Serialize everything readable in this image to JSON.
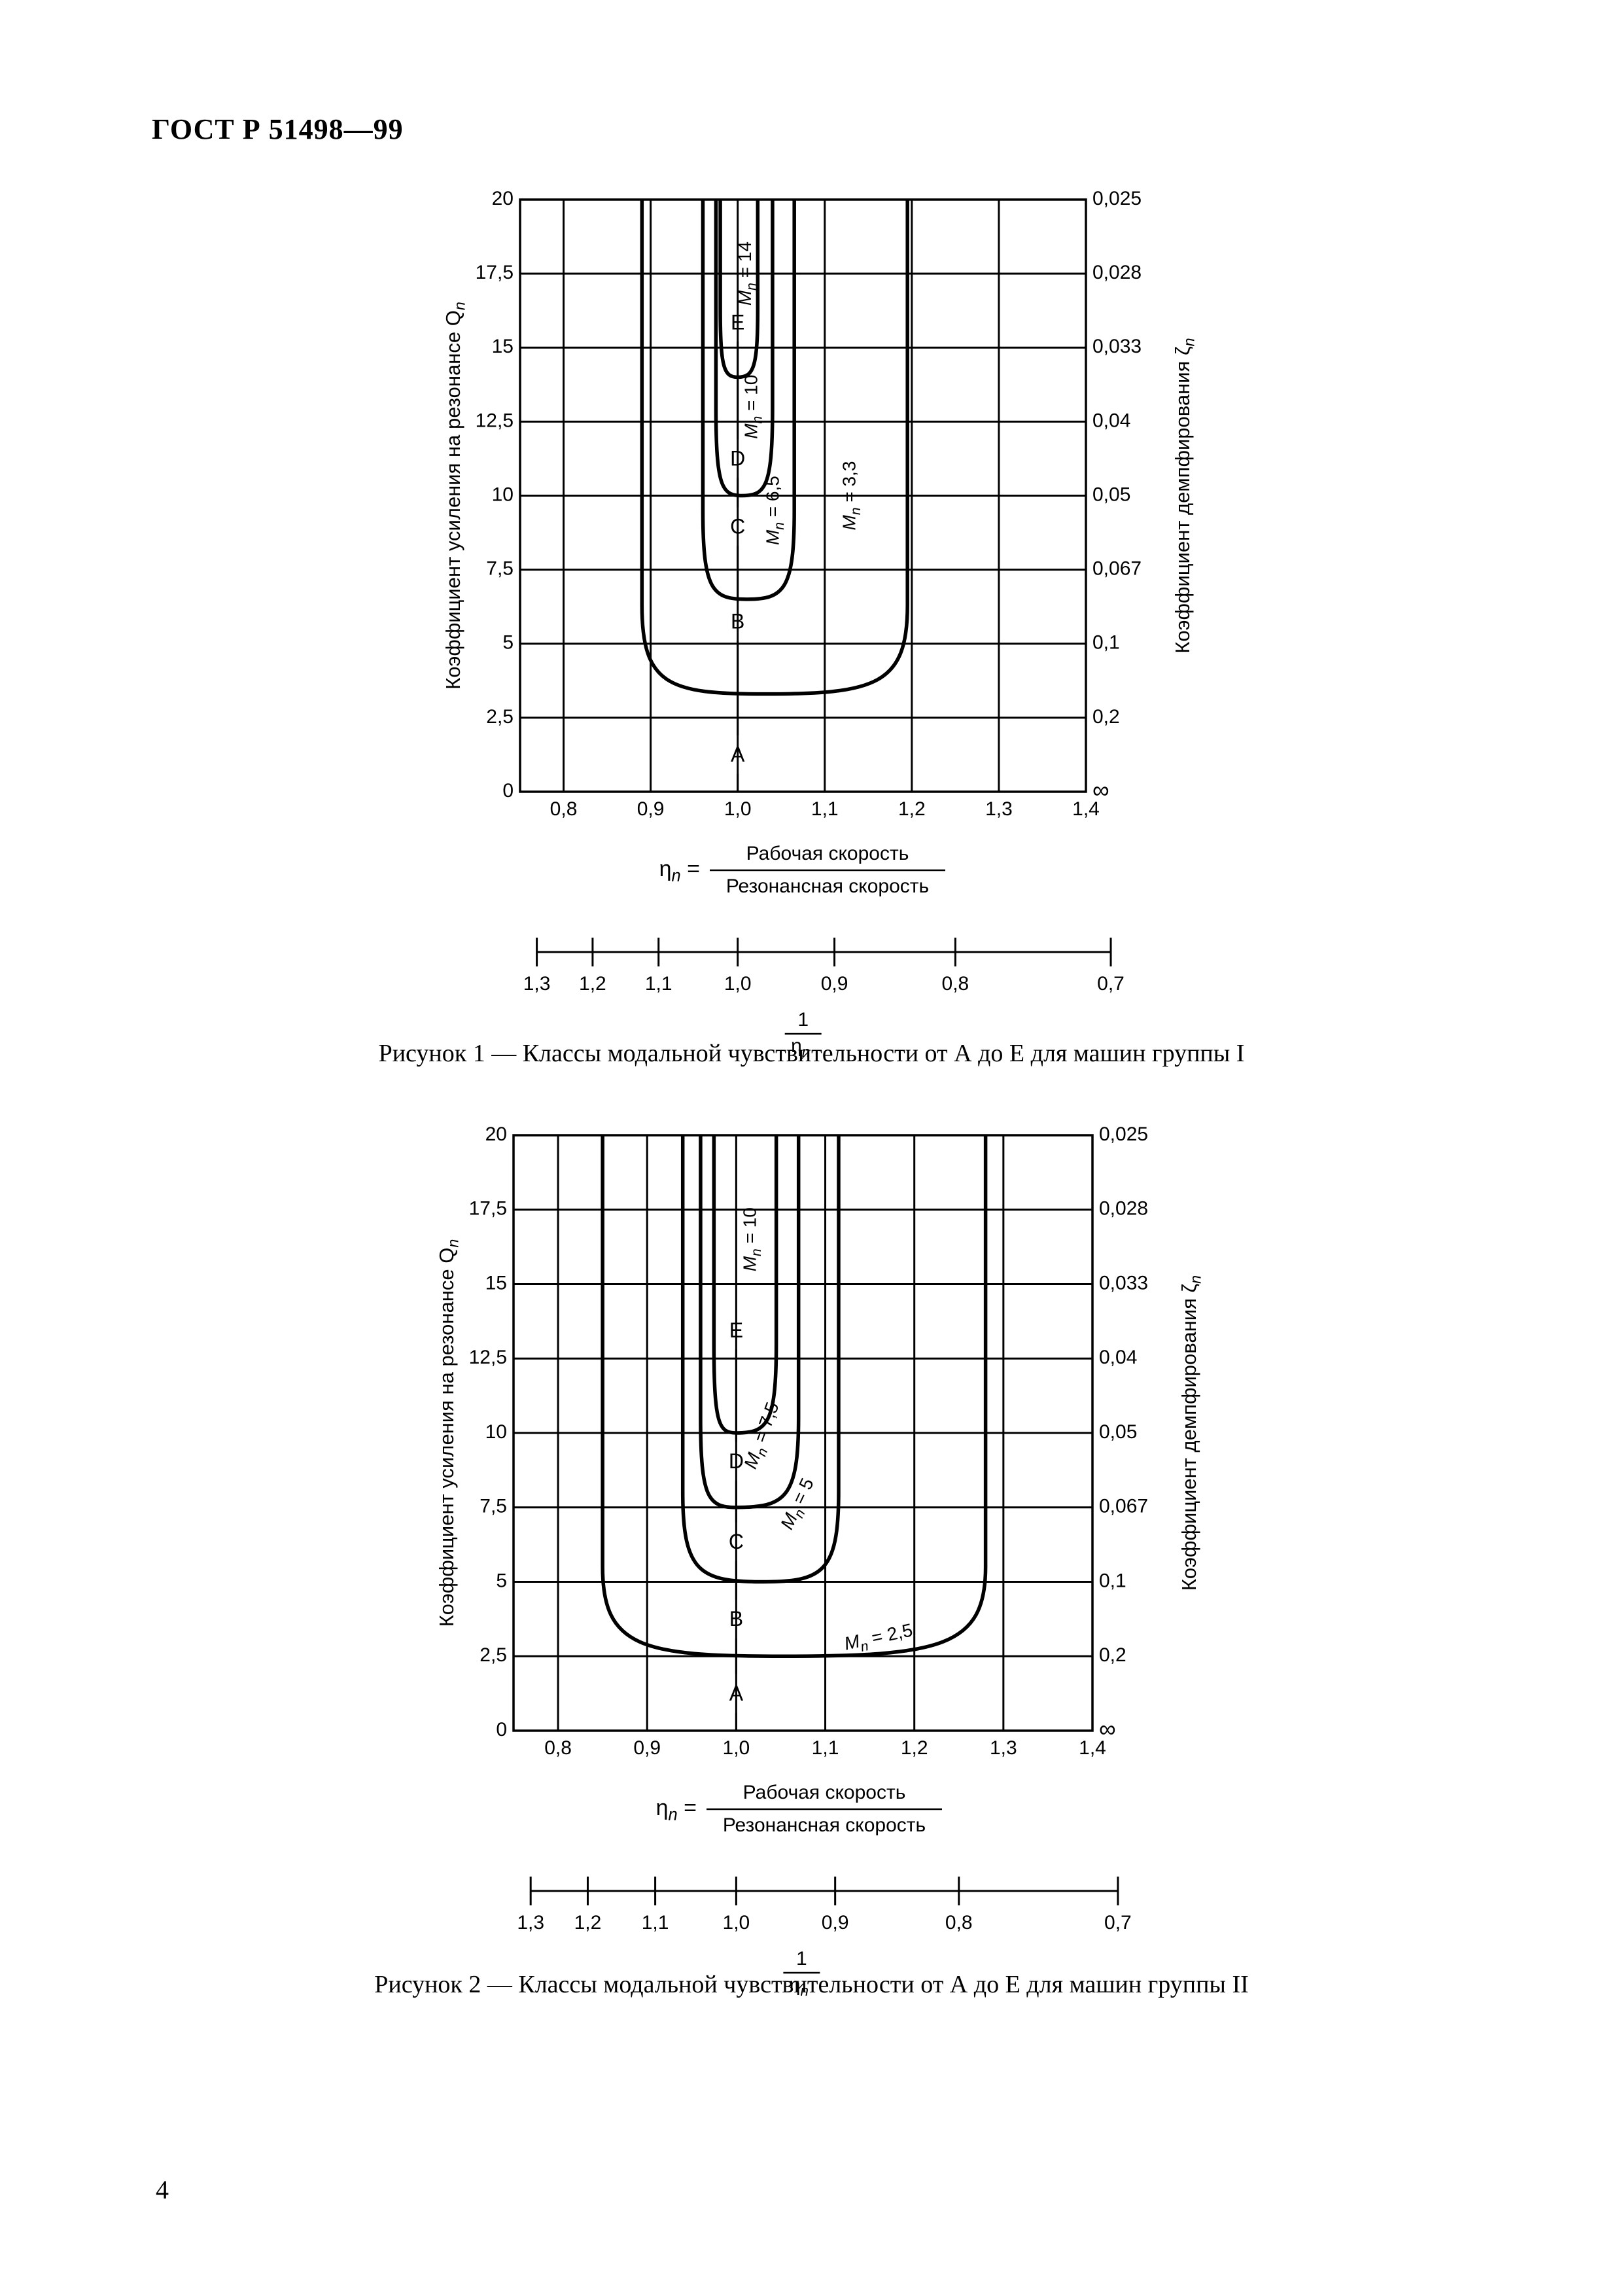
{
  "header": "ГОСТ Р 51498—99",
  "page_number": "4",
  "figures": [
    {
      "caption": "Рисунок 1 — Классы модальной чувствительности от А до Е для машин группы I",
      "chart_data": {
        "type": "line",
        "ylabel": "Коэффициент усиления на резонансе Q",
        "ylabel_sub": "n",
        "y2label": "Коэффициент демпфирования ζ",
        "y2label_sub": "n",
        "xlim": [
          0.75,
          1.4
        ],
        "ylim": [
          0,
          20
        ],
        "x_ticks": [
          "0,8",
          "0,9",
          "1,0",
          "1,1",
          "1,2",
          "1,3",
          "1,4"
        ],
        "y_ticks": [
          "0",
          "2,5",
          "5",
          "7,5",
          "10",
          "12,5",
          "15",
          "17,5",
          "20"
        ],
        "y2_ticks": [
          "∞",
          "0,2",
          "0,1",
          "0,067",
          "0,05",
          "0,04",
          "0,033",
          "0,028",
          "0,025"
        ],
        "x_formula": {
          "lhs": "η",
          "lhs_sub": "n",
          "eq": "=",
          "numerator": "Рабочая скорость",
          "denominator": "Резонансная скорость"
        },
        "x2_ticks": [
          "1,3",
          "1,2",
          "1,1",
          "1,0",
          "0,9",
          "0,8",
          "0,7"
        ],
        "x2_label": {
          "numerator": "1",
          "denominator": "η",
          "denominator_sub": "n"
        },
        "grid": true,
        "class_letters": [
          {
            "label": "A",
            "y": 1.2
          },
          {
            "label": "B",
            "y": 5.7
          },
          {
            "label": "C",
            "y": 8.9
          },
          {
            "label": "D",
            "y": 11.2
          },
          {
            "label": "E",
            "y": 15.8
          }
        ],
        "series": [
          {
            "name": "M = 3,3",
            "name_sub": "n",
            "min_y": 3.3,
            "x_left": 0.89,
            "x_right": 1.195,
            "x_min": 1.03,
            "label_x": 1.13,
            "label_y": 10.0,
            "label_rot": -90
          },
          {
            "name": "M = 6,5",
            "name_sub": "n",
            "min_y": 6.5,
            "x_left": 0.96,
            "x_right": 1.065,
            "x_min": 1.01,
            "label_x": 1.042,
            "label_y": 9.5,
            "label_rot": -90
          },
          {
            "name": "M = 10",
            "name_sub": "n",
            "min_y": 10.0,
            "x_left": 0.975,
            "x_right": 1.04,
            "x_min": 1.005,
            "label_x": 1.017,
            "label_y": 13.0,
            "label_rot": -90
          },
          {
            "name": "M = 14",
            "name_sub": "n",
            "min_y": 14.0,
            "x_left": 0.98,
            "x_right": 1.023,
            "x_min": 1.0,
            "label_x": 1.01,
            "label_y": 17.5,
            "label_rot": -90
          }
        ]
      }
    },
    {
      "caption": "Рисунок 2 — Классы модальной чувствительности от А до Е для машин группы II",
      "chart_data": {
        "type": "line",
        "ylabel": "Коэффициент усиления на резонансе Q",
        "ylabel_sub": "n",
        "y2label": "Коэффициент демпфирования ζ",
        "y2label_sub": "n",
        "xlim": [
          0.75,
          1.4
        ],
        "ylim": [
          0,
          20
        ],
        "x_ticks": [
          "0,8",
          "0,9",
          "1,0",
          "1,1",
          "1,2",
          "1,3",
          "1,4"
        ],
        "y_ticks": [
          "0",
          "2,5",
          "5",
          "7,5",
          "10",
          "12,5",
          "15",
          "17,5",
          "20"
        ],
        "y2_ticks": [
          "∞",
          "0,2",
          "0,1",
          "0,067",
          "0,05",
          "0,04",
          "0,033",
          "0,028",
          "0,025"
        ],
        "x_formula": {
          "lhs": "η",
          "lhs_sub": "n",
          "eq": "=",
          "numerator": "Рабочая скорость",
          "denominator": "Резонансная скорость"
        },
        "x2_ticks": [
          "1,3",
          "1,2",
          "1,1",
          "1,0",
          "0,9",
          "0,8",
          "0,7"
        ],
        "x2_label": {
          "numerator": "1",
          "denominator": "η",
          "denominator_sub": "n"
        },
        "grid": true,
        "class_letters": [
          {
            "label": "A",
            "y": 1.2
          },
          {
            "label": "B",
            "y": 3.7
          },
          {
            "label": "C",
            "y": 6.3
          },
          {
            "label": "D",
            "y": 9.0
          },
          {
            "label": "E",
            "y": 13.4
          }
        ],
        "series": [
          {
            "name": "M = 2,5",
            "name_sub": "n",
            "min_y": 2.5,
            "x_left": 0.85,
            "x_right": 1.28,
            "x_min": 1.05,
            "label_x": 1.16,
            "label_y": 3.1,
            "label_rot": -12
          },
          {
            "name": "M = 5",
            "name_sub": "n",
            "min_y": 5.0,
            "x_left": 0.94,
            "x_right": 1.115,
            "x_min": 1.03,
            "label_x": 1.07,
            "label_y": 7.6,
            "label_rot": -65
          },
          {
            "name": "M = 7,5",
            "name_sub": "n",
            "min_y": 7.5,
            "x_left": 0.96,
            "x_right": 1.07,
            "x_min": 1.0,
            "label_x": 1.03,
            "label_y": 9.9,
            "label_rot": -70
          },
          {
            "name": "M = 10",
            "name_sub": "n",
            "min_y": 10.0,
            "x_left": 0.975,
            "x_right": 1.045,
            "x_min": 1.0,
            "label_x": 1.017,
            "label_y": 16.5,
            "label_rot": -90
          }
        ]
      }
    }
  ]
}
